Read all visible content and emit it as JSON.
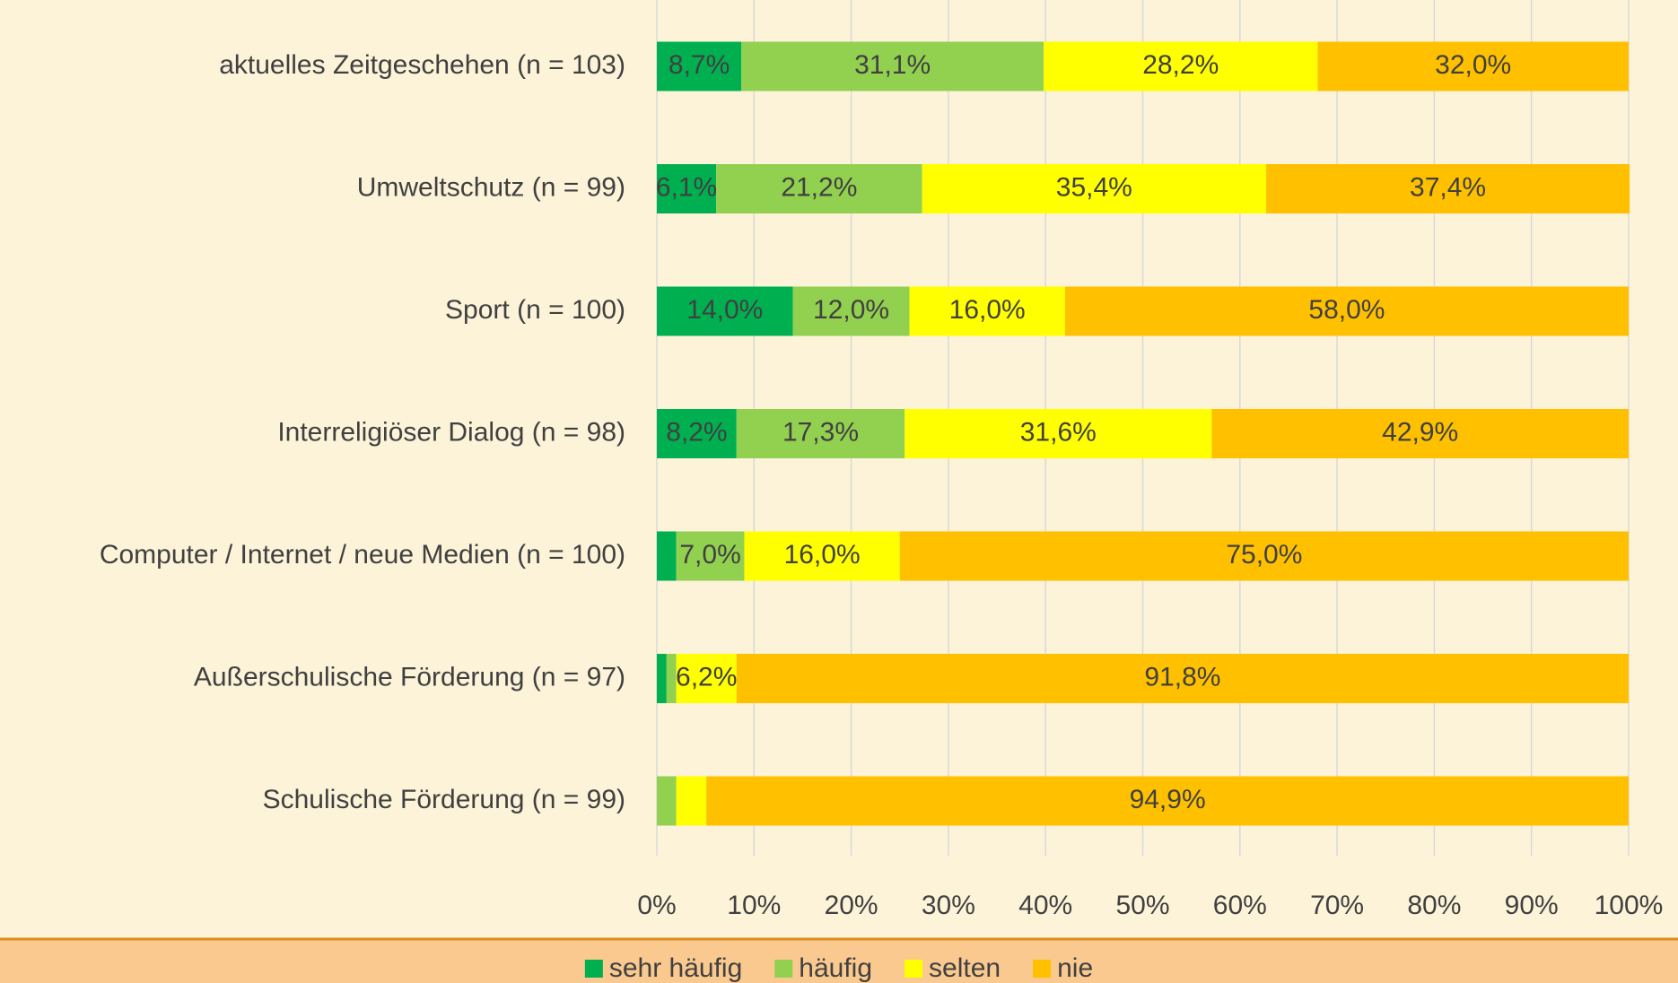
{
  "chart_data": {
    "type": "stacked_bar_horizontal",
    "categories": [
      "aktuelles Zeitgeschehen (n = 103)",
      "Umweltschutz (n = 99)",
      "Sport (n = 100)",
      "Interreligiöser Dialog (n = 98)",
      "Computer / Internet / neue Medien (n = 100)",
      "Außerschulische Förderung (n = 97)",
      "Schulische Förderung (n = 99)"
    ],
    "series": [
      {
        "name": "sehr häufig",
        "color": "#00b050",
        "values": [
          8.7,
          6.1,
          14.0,
          8.2,
          2.0,
          1.0,
          0
        ],
        "value_labels": [
          "8,7%",
          "6,1%",
          "14,0%",
          "8,2%",
          null,
          null,
          null
        ]
      },
      {
        "name": "häufig",
        "color": "#92d050",
        "values": [
          31.1,
          21.2,
          12.0,
          17.3,
          7.0,
          1.0,
          2.0
        ],
        "value_labels": [
          "31,1%",
          "21,2%",
          "12,0%",
          "17,3%",
          "7,0%",
          null,
          null
        ]
      },
      {
        "name": "selten",
        "color": "#ffff00",
        "values": [
          28.2,
          35.4,
          16.0,
          31.6,
          16.0,
          6.2,
          3.1
        ],
        "value_labels": [
          "28,2%",
          "35,4%",
          "16,0%",
          "31,6%",
          "16,0%",
          "6,2%",
          null
        ]
      },
      {
        "name": "nie",
        "color": "#ffc000",
        "values": [
          32.0,
          37.4,
          58.0,
          42.9,
          75.0,
          91.8,
          94.9
        ],
        "value_labels": [
          "32,0%",
          "37,4%",
          "58,0%",
          "42,9%",
          "75,0%",
          "91,8%",
          "94,9%"
        ]
      }
    ],
    "xlim": [
      0,
      100
    ],
    "xticks": [
      {
        "value": 0,
        "label": "0%"
      },
      {
        "value": 10,
        "label": "10%"
      },
      {
        "value": 20,
        "label": "20%"
      },
      {
        "value": 30,
        "label": "30%"
      },
      {
        "value": 40,
        "label": "40%"
      },
      {
        "value": 50,
        "label": "50%"
      },
      {
        "value": 60,
        "label": "60%"
      },
      {
        "value": 70,
        "label": "70%"
      },
      {
        "value": 80,
        "label": "80%"
      },
      {
        "value": 90,
        "label": "90%"
      },
      {
        "value": 100,
        "label": "100%"
      }
    ],
    "grid": true,
    "legend": "bottom"
  }
}
